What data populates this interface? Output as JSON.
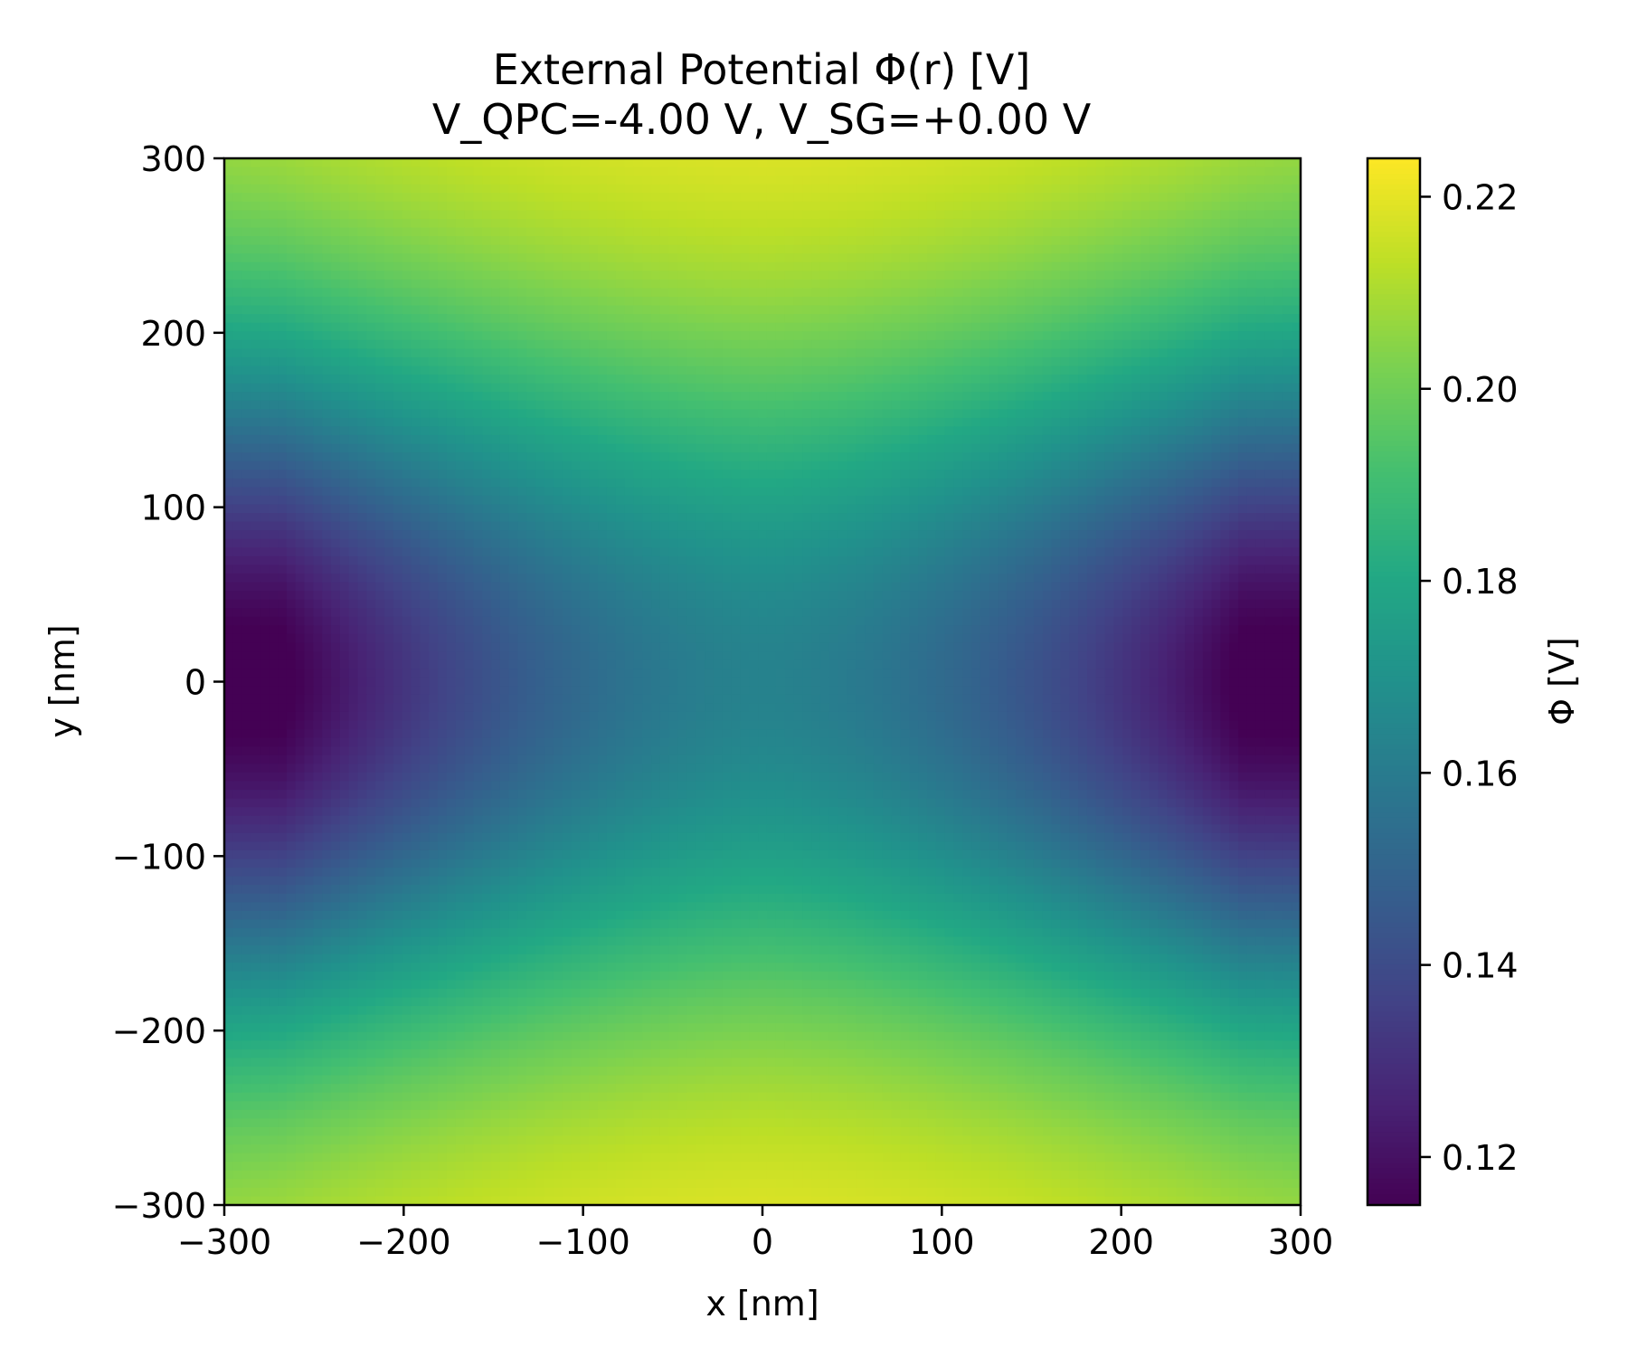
{
  "chart_data": {
    "type": "heatmap",
    "title": "External Potential Φ(r) [V]",
    "subtitle": "V_QPC=-4.00 V, V_SG=+0.00 V",
    "xlabel": "x [nm]",
    "ylabel": "y [nm]",
    "colorbar_label": "Φ [V]",
    "colormap": "viridis",
    "xlim": [
      -300,
      300
    ],
    "ylim": [
      -300,
      300
    ],
    "clim": [
      0.115,
      0.224
    ],
    "x_ticks": [
      -300,
      -200,
      -100,
      0,
      100,
      200,
      300
    ],
    "x_tick_labels": [
      "−300",
      "−200",
      "−100",
      "0",
      "100",
      "200",
      "300"
    ],
    "y_ticks": [
      -300,
      -200,
      -100,
      0,
      100,
      200,
      300
    ],
    "y_tick_labels": [
      "−300",
      "−200",
      "−100",
      "0",
      "100",
      "200",
      "300"
    ],
    "colorbar_ticks": [
      0.12,
      0.14,
      0.16,
      0.18,
      0.2,
      0.22
    ],
    "colorbar_tick_labels": [
      "0.12",
      "0.14",
      "0.16",
      "0.18",
      "0.20",
      "0.22"
    ],
    "grid": false,
    "grid_resolution": 121,
    "field_model": {
      "description": "saddle-shaped potential: high along y-edges (|y| large near x=0), low at left/right (|x| large near y=0)",
      "center_value": 0.163,
      "min_value": 0.115,
      "max_value": 0.224,
      "sample_points": [
        {
          "x": 0,
          "y": 0,
          "phi": 0.163
        },
        {
          "x": 0,
          "y": 300,
          "phi": 0.224
        },
        {
          "x": 0,
          "y": -300,
          "phi": 0.224
        },
        {
          "x": -260,
          "y": 0,
          "phi": 0.115
        },
        {
          "x": 260,
          "y": 0,
          "phi": 0.115
        },
        {
          "x": 300,
          "y": 300,
          "phi": 0.2
        },
        {
          "x": -300,
          "y": -300,
          "phi": 0.215
        }
      ]
    }
  }
}
